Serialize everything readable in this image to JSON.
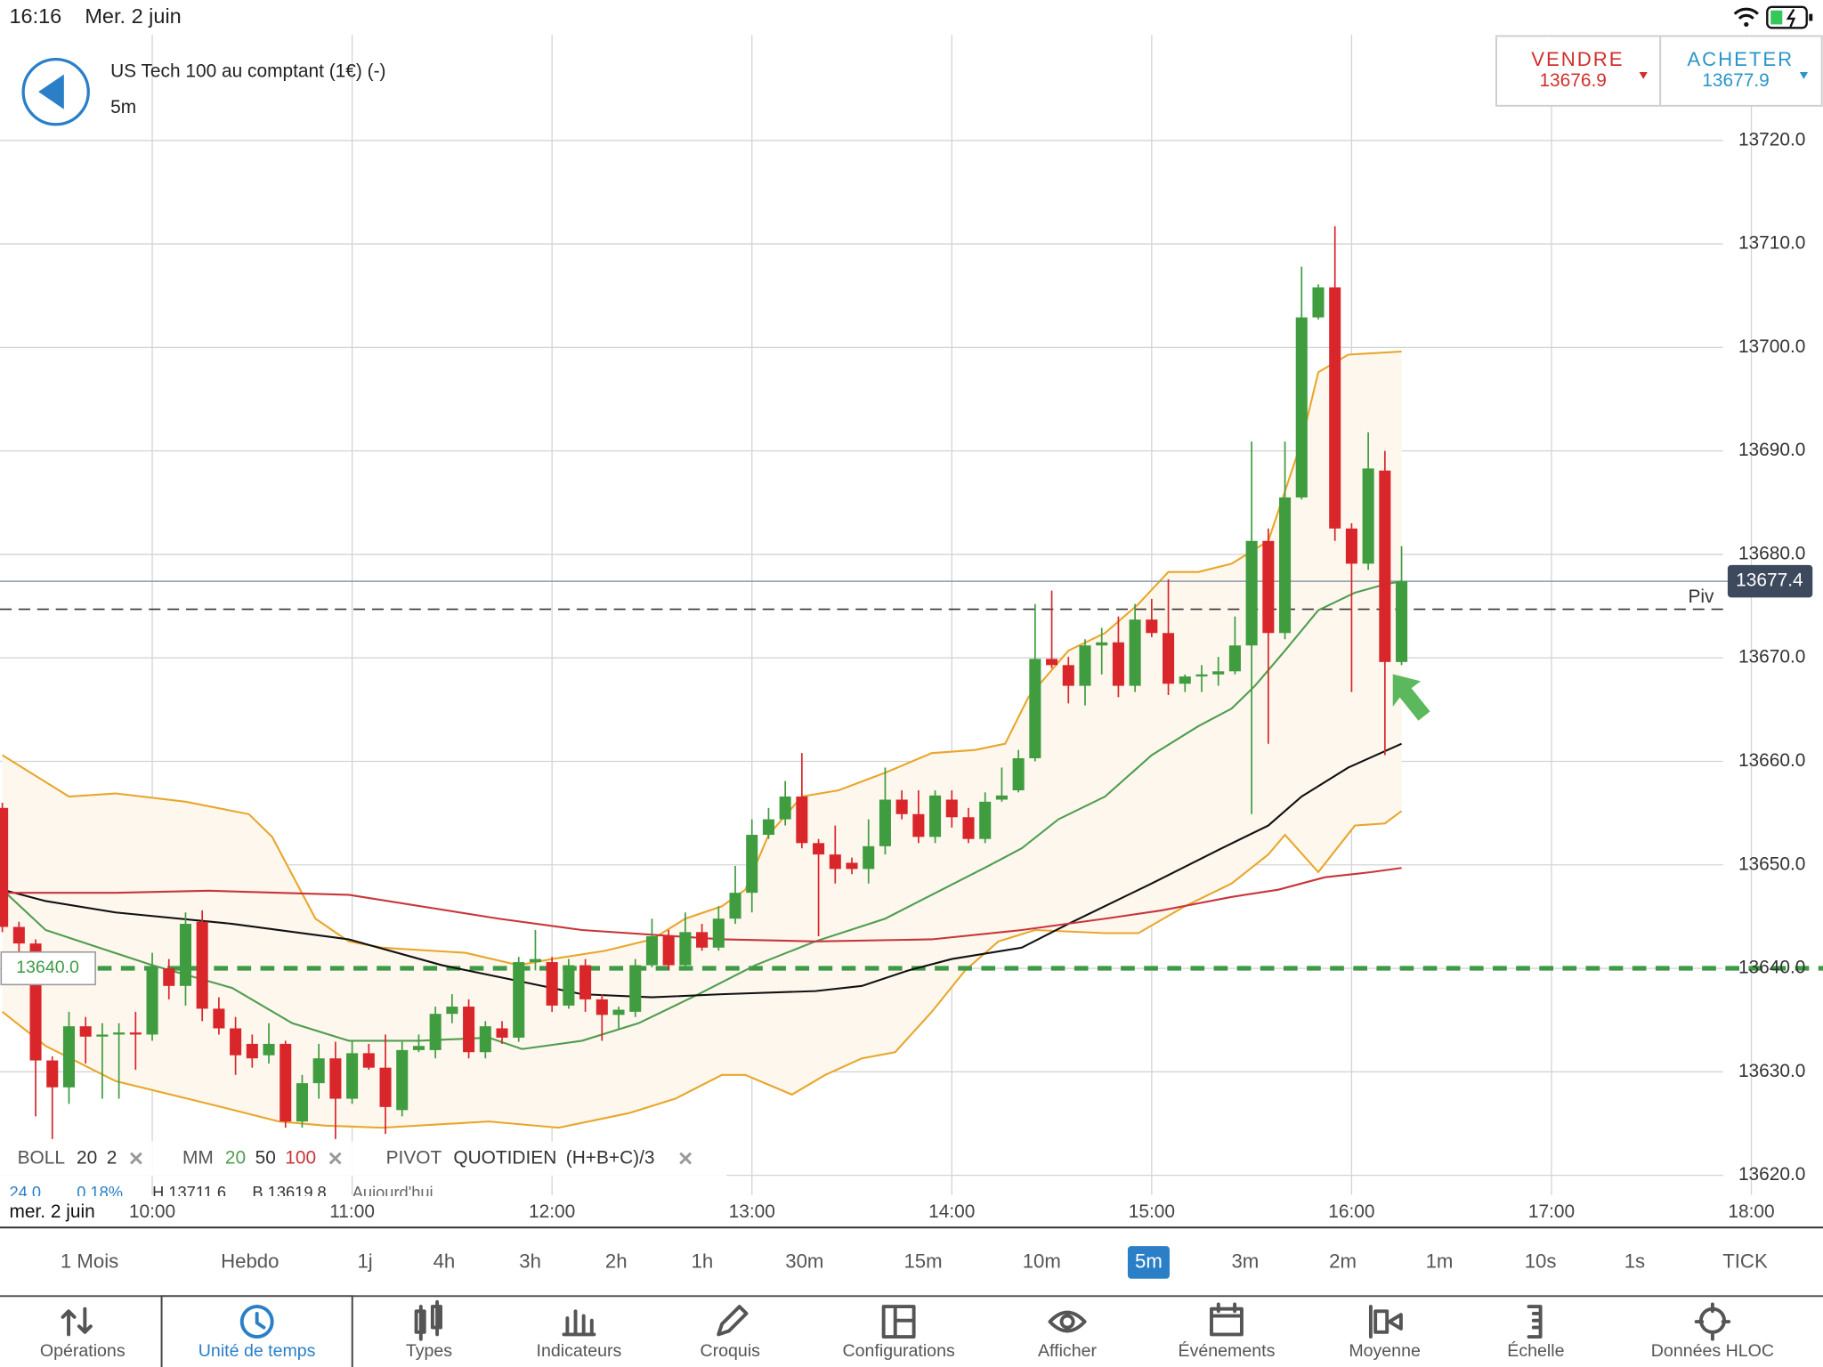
{
  "status_bar": {
    "time": "16:16",
    "date": "Mer. 2 juin"
  },
  "header": {
    "title": "US Tech 100 au comptant (1€) (-)",
    "timeframe": "5m"
  },
  "trade": {
    "sell_label": "VENDRE",
    "sell_price": 13676.9,
    "buy_label": "ACHETER",
    "buy_price": 13677.9
  },
  "chart_data": {
    "type": "candlestick",
    "x": [
      555,
      560,
      565,
      570,
      575,
      580,
      585,
      590,
      595,
      600,
      605,
      610,
      615,
      620,
      625,
      630,
      635,
      640,
      645,
      650,
      655,
      660,
      665,
      670,
      675,
      680,
      685,
      690,
      695,
      700,
      705,
      710,
      715,
      720,
      725,
      730,
      735,
      740,
      745,
      750,
      755,
      760,
      765,
      770,
      775,
      780,
      785,
      790,
      795,
      800,
      805,
      810,
      815,
      820,
      825,
      830,
      835,
      840,
      845,
      850,
      855,
      860,
      865,
      870,
      875,
      880,
      885,
      890,
      895,
      900,
      905,
      910,
      915,
      920,
      925,
      930,
      935,
      940,
      945,
      950,
      955,
      960,
      965,
      970,
      975
    ],
    "open": [
      13655.5,
      13644.0,
      13642.4,
      13631.1,
      13628.5,
      13634.4,
      13633.4,
      13633.6,
      13633.8,
      13633.6,
      13640.0,
      13638.3,
      13644.5,
      13636.1,
      13634.2,
      13632.7,
      13631.6,
      13632.7,
      13625.2,
      13628.9,
      13631.3,
      13627.4,
      13631.8,
      13630.4,
      13626.3,
      13632.1,
      13632.1,
      13635.6,
      13636.3,
      13631.9,
      13634.2,
      13633.3,
      13640.6,
      13640.6,
      13636.4,
      13640.3,
      13637.0,
      13635.5,
      13635.8,
      13640.3,
      13643.1,
      13640.3,
      13643.5,
      13642.0,
      13644.8,
      13647.3,
      13652.9,
      13654.4,
      13656.6,
      13652.1,
      13651.0,
      13650.2,
      13649.6,
      13651.8,
      13656.3,
      13654.9,
      13652.7,
      13656.3,
      13654.6,
      13652.5,
      13656.3,
      13657.2,
      13660.3,
      13669.9,
      13669.3,
      13667.3,
      13671.2,
      13671.5,
      13667.3,
      13673.7,
      13672.4,
      13667.5,
      13668.2,
      13668.4,
      13668.7,
      13671.2,
      13681.3,
      13672.4,
      13685.5,
      13702.9,
      13705.8,
      13682.5,
      13679.1,
      13688.1,
      13669.6
    ],
    "high": [
      13656.0,
      13644.5,
      13642.8,
      13631.5,
      13635.8,
      13635.3,
      13634.7,
      13634.7,
      13635.8,
      13641.5,
      13640.9,
      13645.4,
      13645.6,
      13637.2,
      13635.3,
      13633.6,
      13634.7,
      13633.0,
      13629.7,
      13632.7,
      13632.9,
      13633.0,
      13632.7,
      13633.6,
      13632.9,
      13633.6,
      13636.3,
      13637.5,
      13637.0,
      13634.9,
      13634.9,
      13641.1,
      13643.7,
      13641.1,
      13640.9,
      13640.9,
      13637.5,
      13636.3,
      13640.9,
      13644.8,
      13643.7,
      13645.4,
      13644.3,
      13646.0,
      13649.9,
      13654.4,
      13655.5,
      13658.1,
      13660.8,
      13652.5,
      13653.8,
      13650.7,
      13654.4,
      13659.4,
      13657.2,
      13657.2,
      13657.2,
      13657.2,
      13655.5,
      13657.0,
      13659.4,
      13661.1,
      13675.2,
      13676.5,
      13670.1,
      13671.8,
      13672.9,
      13674.0,
      13675.2,
      13675.7,
      13677.6,
      13668.4,
      13669.3,
      13670.1,
      13674.0,
      13690.9,
      13682.5,
      13690.9,
      13707.8,
      13706.1,
      13711.7,
      13683.0,
      13691.8,
      13690.0,
      13680.8
    ],
    "low": [
      13643.5,
      13641.5,
      13625.7,
      13623.5,
      13626.9,
      13630.8,
      13627.4,
      13627.4,
      13630.2,
      13633.0,
      13637.0,
      13636.4,
      13634.9,
      13633.6,
      13629.7,
      13630.4,
      13630.8,
      13624.6,
      13624.6,
      13627.4,
      13623.5,
      13626.9,
      13630.2,
      13624.0,
      13625.7,
      13631.9,
      13631.3,
      13634.7,
      13631.3,
      13631.3,
      13632.7,
      13632.9,
      13639.8,
      13635.8,
      13636.1,
      13635.8,
      13633.0,
      13634.2,
      13635.3,
      13640.1,
      13639.8,
      13640.1,
      13641.7,
      13641.7,
      13644.3,
      13645.4,
      13652.5,
      13653.8,
      13651.6,
      13643.1,
      13648.2,
      13649.1,
      13648.2,
      13651.0,
      13654.4,
      13652.1,
      13652.1,
      13653.6,
      13652.1,
      13652.1,
      13656.1,
      13657.0,
      13660.0,
      13669.0,
      13665.6,
      13665.4,
      13668.4,
      13666.2,
      13666.7,
      13672.0,
      13666.4,
      13666.7,
      13666.7,
      13667.3,
      13668.4,
      13654.9,
      13661.7,
      13671.8,
      13685.3,
      13702.7,
      13681.3,
      13666.7,
      13678.5,
      13660.6,
      13669.3
    ],
    "close": [
      13644.0,
      13642.4,
      13631.1,
      13628.5,
      13634.4,
      13633.4,
      13633.6,
      13633.8,
      13633.6,
      13640.0,
      13638.3,
      13644.3,
      13636.1,
      13634.2,
      13631.6,
      13631.3,
      13632.7,
      13625.2,
      13628.9,
      13631.3,
      13627.4,
      13631.8,
      13630.4,
      13626.6,
      13632.1,
      13632.5,
      13635.6,
      13636.3,
      13631.9,
      13634.4,
      13633.3,
      13640.6,
      13640.9,
      13636.4,
      13640.3,
      13637.0,
      13635.5,
      13636.0,
      13640.3,
      13643.1,
      13640.3,
      13643.5,
      13642.0,
      13644.8,
      13647.3,
      13652.9,
      13654.4,
      13656.6,
      13652.1,
      13651.0,
      13649.6,
      13649.6,
      13651.8,
      13656.3,
      13654.9,
      13652.7,
      13656.7,
      13654.6,
      13652.5,
      13656.1,
      13656.7,
      13660.3,
      13669.9,
      13669.3,
      13667.3,
      13671.2,
      13671.5,
      13667.3,
      13673.7,
      13672.4,
      13667.5,
      13668.2,
      13668.4,
      13668.7,
      13671.2,
      13681.3,
      13672.4,
      13685.5,
      13702.9,
      13705.8,
      13682.5,
      13679.1,
      13688.3,
      13669.6,
      13677.4
    ],
    "up_color": "#3f9c3f",
    "down_color": "#d9262b",
    "xlim": [
      554.3,
      1101.5
    ],
    "ylim": [
      13618.1,
      13730.2
    ],
    "xticks": [
      {
        "value": 600,
        "label": "10:00"
      },
      {
        "value": 660,
        "label": "11:00"
      },
      {
        "value": 720,
        "label": "12:00"
      },
      {
        "value": 780,
        "label": "13:00"
      },
      {
        "value": 840,
        "label": "14:00"
      },
      {
        "value": 900,
        "label": "15:00"
      },
      {
        "value": 960,
        "label": "16:00"
      },
      {
        "value": 1020,
        "label": "17:00"
      },
      {
        "value": 1080,
        "label": "18:00"
      }
    ],
    "yticks": [
      {
        "value": 13620,
        "label": "13620.0"
      },
      {
        "value": 13630,
        "label": "13630.0"
      },
      {
        "value": 13640,
        "label": "13640.0"
      },
      {
        "value": 13650,
        "label": "13650.0"
      },
      {
        "value": 13660,
        "label": "13660.0"
      },
      {
        "value": 13670,
        "label": "13670.0"
      },
      {
        "value": 13680,
        "label": "13680.0"
      },
      {
        "value": 13690,
        "label": "13690.0"
      },
      {
        "value": 13700,
        "label": "13700.0"
      },
      {
        "value": 13710,
        "label": "13710.0"
      },
      {
        "value": 13720,
        "label": "13720.0"
      }
    ],
    "grid": true,
    "date_label": "mer. 2 juin",
    "bollinger": {
      "color": "#e9a62b",
      "fill": "#fdf7ee",
      "upper": {
        "x": [
          555,
          575,
          589,
          610,
          629,
          636,
          649,
          659,
          669,
          694,
          710,
          720,
          736,
          750,
          760,
          771,
          778,
          785,
          795,
          806,
          820,
          834,
          847,
          856,
          863,
          875,
          886,
          896,
          905,
          914,
          924,
          935,
          945,
          950,
          959,
          975
        ],
        "values": [
          13660.6,
          13656.6,
          13656.9,
          13656.1,
          13654.9,
          13652.7,
          13644.8,
          13642.6,
          13642.0,
          13641.5,
          13640.3,
          13640.9,
          13641.7,
          13642.8,
          13644.8,
          13646.0,
          13647.6,
          13652.9,
          13656.6,
          13657.2,
          13658.9,
          13660.8,
          13661.1,
          13661.7,
          13666.2,
          13670.7,
          13672.4,
          13675.2,
          13678.3,
          13678.3,
          13679.1,
          13681.3,
          13690.9,
          13697.6,
          13699.3,
          13699.6
        ]
      },
      "lower": {
        "x": [
          555,
          568,
          589,
          617,
          638,
          652,
          669,
          701,
          722,
          743,
          757,
          771,
          778,
          792,
          802,
          813,
          823,
          834,
          844,
          854,
          865,
          886,
          896,
          910,
          924,
          935,
          940,
          950,
          961,
          970,
          975
        ],
        "values": [
          13635.8,
          13632.5,
          13629.1,
          13626.9,
          13625.2,
          13624.8,
          13624.6,
          13625.2,
          13624.6,
          13626.0,
          13627.4,
          13629.7,
          13629.7,
          13627.8,
          13629.7,
          13631.3,
          13631.9,
          13635.8,
          13639.8,
          13642.6,
          13643.7,
          13643.4,
          13643.4,
          13646.0,
          13648.2,
          13651.0,
          13652.9,
          13649.3,
          13653.8,
          13654.0,
          13655.2
        ]
      }
    },
    "moving_averages": [
      {
        "color": "#4f9d4f",
        "x": [
          555,
          568,
          600,
          624,
          642,
          659,
          680,
          701,
          711,
          729,
          746,
          764,
          781,
          799,
          820,
          837,
          851,
          861,
          872,
          886,
          900,
          914,
          924,
          931,
          940,
          950,
          961,
          970,
          975
        ],
        "values": [
          13647.6,
          13643.7,
          13640.3,
          13638.1,
          13634.7,
          13633.0,
          13633.0,
          13633.3,
          13632.2,
          13633.0,
          13634.7,
          13637.5,
          13640.3,
          13642.6,
          13644.8,
          13647.6,
          13649.9,
          13651.6,
          13654.4,
          13656.6,
          13660.6,
          13663.4,
          13665.1,
          13667.3,
          13670.7,
          13674.6,
          13676.3,
          13677.1,
          13677.4
        ]
      },
      {
        "color": "#111111",
        "x": [
          555,
          568,
          589,
          624,
          659,
          687,
          711,
          729,
          750,
          771,
          799,
          813,
          827,
          840,
          861,
          875,
          900,
          921,
          935,
          945,
          959,
          975
        ],
        "values": [
          13647.6,
          13646.5,
          13645.4,
          13644.3,
          13642.8,
          13640.3,
          13638.7,
          13637.5,
          13637.2,
          13637.5,
          13637.8,
          13638.3,
          13639.8,
          13640.9,
          13642.0,
          13644.3,
          13648.2,
          13651.6,
          13653.8,
          13656.6,
          13659.4,
          13661.7
        ]
      },
      {
        "color": "#c8353a",
        "x": [
          555,
          589,
          617,
          659,
          704,
          729,
          771,
          799,
          834,
          861,
          886,
          903,
          924,
          938,
          952,
          966,
          975
        ],
        "values": [
          13647.3,
          13647.3,
          13647.5,
          13647.1,
          13644.8,
          13643.7,
          13642.8,
          13642.6,
          13642.8,
          13643.7,
          13644.8,
          13645.6,
          13646.9,
          13647.6,
          13648.8,
          13649.3,
          13649.7
        ]
      }
    ],
    "last_price": 13677.4,
    "last_price_color": "#3d4a5e",
    "pivot": {
      "value": 13674.7,
      "label": "Piv"
    },
    "level": {
      "value": 13640,
      "label": "13640.0",
      "color": "#3e9a46"
    },
    "legend": [
      [
        {
          "text": "BOLL",
          "color": "#555555"
        },
        {
          "text": "20",
          "color": "#333333"
        },
        {
          "text": "2",
          "color": "#333333"
        }
      ],
      [
        {
          "text": "MM",
          "color": "#555555"
        },
        {
          "text": "20",
          "color": "#4f9d4f"
        },
        {
          "text": "50",
          "color": "#333333"
        },
        {
          "text": "100",
          "color": "#c8353a"
        }
      ],
      [
        {
          "text": "PIVOT",
          "color": "#555555"
        },
        {
          "text": "QUOTIDIEN",
          "color": "#333333"
        },
        {
          "text": "(H+B+C)/3",
          "color": "#333333"
        }
      ]
    ],
    "info": [
      {
        "text": "24.0",
        "color": "#2a7fc7"
      },
      {
        "text": "0.18%",
        "color": "#2a7fc7"
      },
      {
        "text": "H 13711.6",
        "color": "#333333"
      },
      {
        "text": "B 13619.8",
        "color": "#333333"
      },
      {
        "text": "Aujourd'hui",
        "color": "#666666"
      }
    ]
  },
  "timeframes": {
    "items": [
      "1 Mois",
      "Hebdo",
      "1j",
      "4h",
      "3h",
      "2h",
      "1h",
      "30m",
      "15m",
      "10m",
      "5m",
      "3m",
      "2m",
      "1m",
      "10s",
      "1s",
      "TICK"
    ],
    "selected": 10
  },
  "toolbar": {
    "items": [
      "Opérations",
      "Unité de temps",
      "Types",
      "Indicateurs",
      "Croquis",
      "Configurations",
      "Afficher",
      "Événements",
      "Moyenne",
      "Échelle",
      "Données HLOC"
    ],
    "active": 1
  }
}
